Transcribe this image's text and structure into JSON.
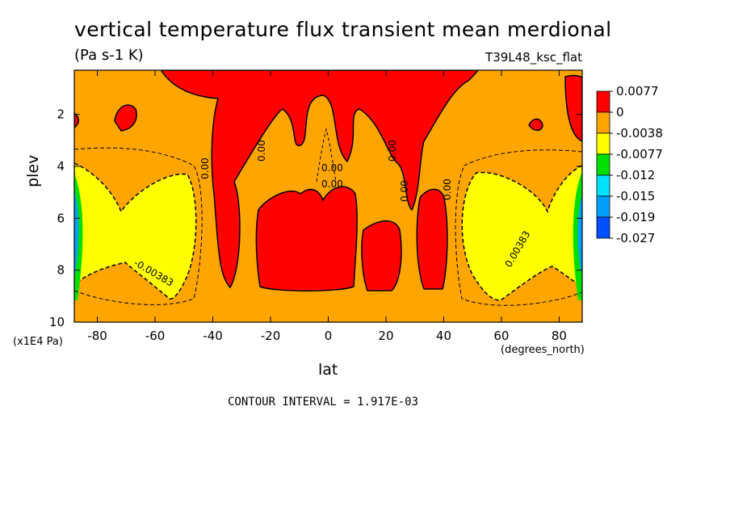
{
  "chart_data": {
    "type": "heatmap",
    "title": "vertical temperature flux transient mean merdional",
    "units": "(Pa s-1 K)",
    "run_label": "T39L48_ksc_flat",
    "xlabel": "lat",
    "xunits": "(degrees_north)",
    "ylabel": "plev",
    "yunits": "(x1E4 Pa)",
    "contour_interval_text": "CONTOUR INTERVAL = 1.917E-03",
    "xlim": [
      -88,
      88
    ],
    "ylim": [
      10,
      0.3
    ],
    "x_ticks": [
      -80,
      -60,
      -40,
      -20,
      0,
      20,
      40,
      60,
      80
    ],
    "x_tick_labels": [
      "-80",
      "-60",
      "-40",
      "-20",
      "0",
      "20",
      "40",
      "60",
      "80"
    ],
    "y_ticks": [
      2,
      4,
      6,
      8,
      10
    ],
    "y_tick_labels": [
      "2",
      "4",
      "6",
      "8",
      "10"
    ],
    "colorbar": {
      "levels": [
        "0.0077",
        "0",
        "-0.0038",
        "-0.0077",
        "-0.012",
        "-0.015",
        "-0.019",
        "-0.027"
      ],
      "colors": [
        "#ff0000",
        "#ffa500",
        "#ffff00",
        "#00e000",
        "#00e0ff",
        "#00a0ff",
        "#0050ff"
      ]
    },
    "contour_labels": [
      "0.00",
      "0.00",
      "0.00",
      "0.00",
      "0.00",
      "0.00",
      "0.00",
      "-0.00383",
      "0.00383"
    ],
    "colors": {
      "positive": "#ff0000",
      "background": "#ffa500",
      "negative_weak": "#ffff00",
      "negative_mid": "#00e000",
      "negative_strong": "#00a0ff"
    }
  }
}
